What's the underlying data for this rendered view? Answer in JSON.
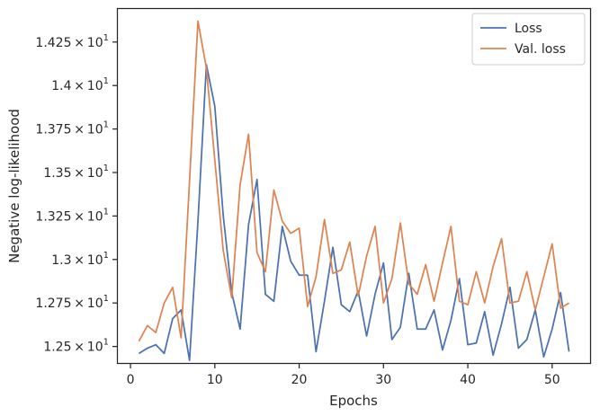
{
  "chart_data": {
    "type": "line",
    "xlabel": "Epochs",
    "ylabel": "Negative log-likelihood",
    "xlim": [
      -1.5,
      54.5
    ],
    "ylim": [
      12.405,
      14.44
    ],
    "x_ticks": [
      0,
      10,
      20,
      30,
      40,
      50
    ],
    "x_tick_labels": [
      "0",
      "10",
      "20",
      "30",
      "40",
      "50"
    ],
    "y_ticks": [
      12.5,
      12.75,
      13.0,
      13.25,
      13.5,
      13.75,
      14.0,
      14.25
    ],
    "y_tick_labels": [
      {
        "mantissa": "1.25",
        "exponent": "1"
      },
      {
        "mantissa": "1.275",
        "exponent": "1"
      },
      {
        "mantissa": "1.3",
        "exponent": "1"
      },
      {
        "mantissa": "1.325",
        "exponent": "1"
      },
      {
        "mantissa": "1.35",
        "exponent": "1"
      },
      {
        "mantissa": "1.375",
        "exponent": "1"
      },
      {
        "mantissa": "1.4",
        "exponent": "1"
      },
      {
        "mantissa": "1.425",
        "exponent": "1"
      }
    ],
    "y_tick_times": "×",
    "y_tick_base": "10",
    "grid": false,
    "legend_position": "top-right",
    "x": [
      1,
      2,
      3,
      4,
      5,
      6,
      7,
      8,
      9,
      10,
      11,
      12,
      13,
      14,
      15,
      16,
      17,
      18,
      19,
      20,
      21,
      22,
      23,
      24,
      25,
      26,
      27,
      28,
      29,
      30,
      31,
      32,
      33,
      34,
      35,
      36,
      37,
      38,
      39,
      40,
      41,
      42,
      43,
      44,
      45,
      46,
      47,
      48,
      49,
      50,
      51,
      52
    ],
    "series": [
      {
        "name": "Loss",
        "color": "#4c72b0",
        "values": [
          12.46,
          12.49,
          12.51,
          12.46,
          12.66,
          12.71,
          12.42,
          13.22,
          14.12,
          13.88,
          13.25,
          12.81,
          12.6,
          13.2,
          13.46,
          12.8,
          12.76,
          13.19,
          12.99,
          12.91,
          12.91,
          12.47,
          12.76,
          13.07,
          12.74,
          12.7,
          12.82,
          12.56,
          12.8,
          12.98,
          12.54,
          12.61,
          12.92,
          12.6,
          12.6,
          12.71,
          12.48,
          12.65,
          12.89,
          12.51,
          12.52,
          12.7,
          12.45,
          12.63,
          12.84,
          12.49,
          12.54,
          12.71,
          12.44,
          12.6,
          12.81,
          12.47
        ]
      },
      {
        "name": "Val. loss",
        "color": "#dd8452",
        "values": [
          12.53,
          12.62,
          12.58,
          12.75,
          12.84,
          12.55,
          13.45,
          14.37,
          14.1,
          13.57,
          13.05,
          12.78,
          13.43,
          13.72,
          13.04,
          12.93,
          13.4,
          13.22,
          13.15,
          13.18,
          12.73,
          12.9,
          13.23,
          12.92,
          12.94,
          13.1,
          12.79,
          13.02,
          13.19,
          12.75,
          12.89,
          13.21,
          12.86,
          12.8,
          12.97,
          12.76,
          12.98,
          13.19,
          12.76,
          12.74,
          12.93,
          12.75,
          12.96,
          13.12,
          12.75,
          12.76,
          12.93,
          12.71,
          12.9,
          13.09,
          12.72,
          12.75
        ]
      }
    ]
  }
}
